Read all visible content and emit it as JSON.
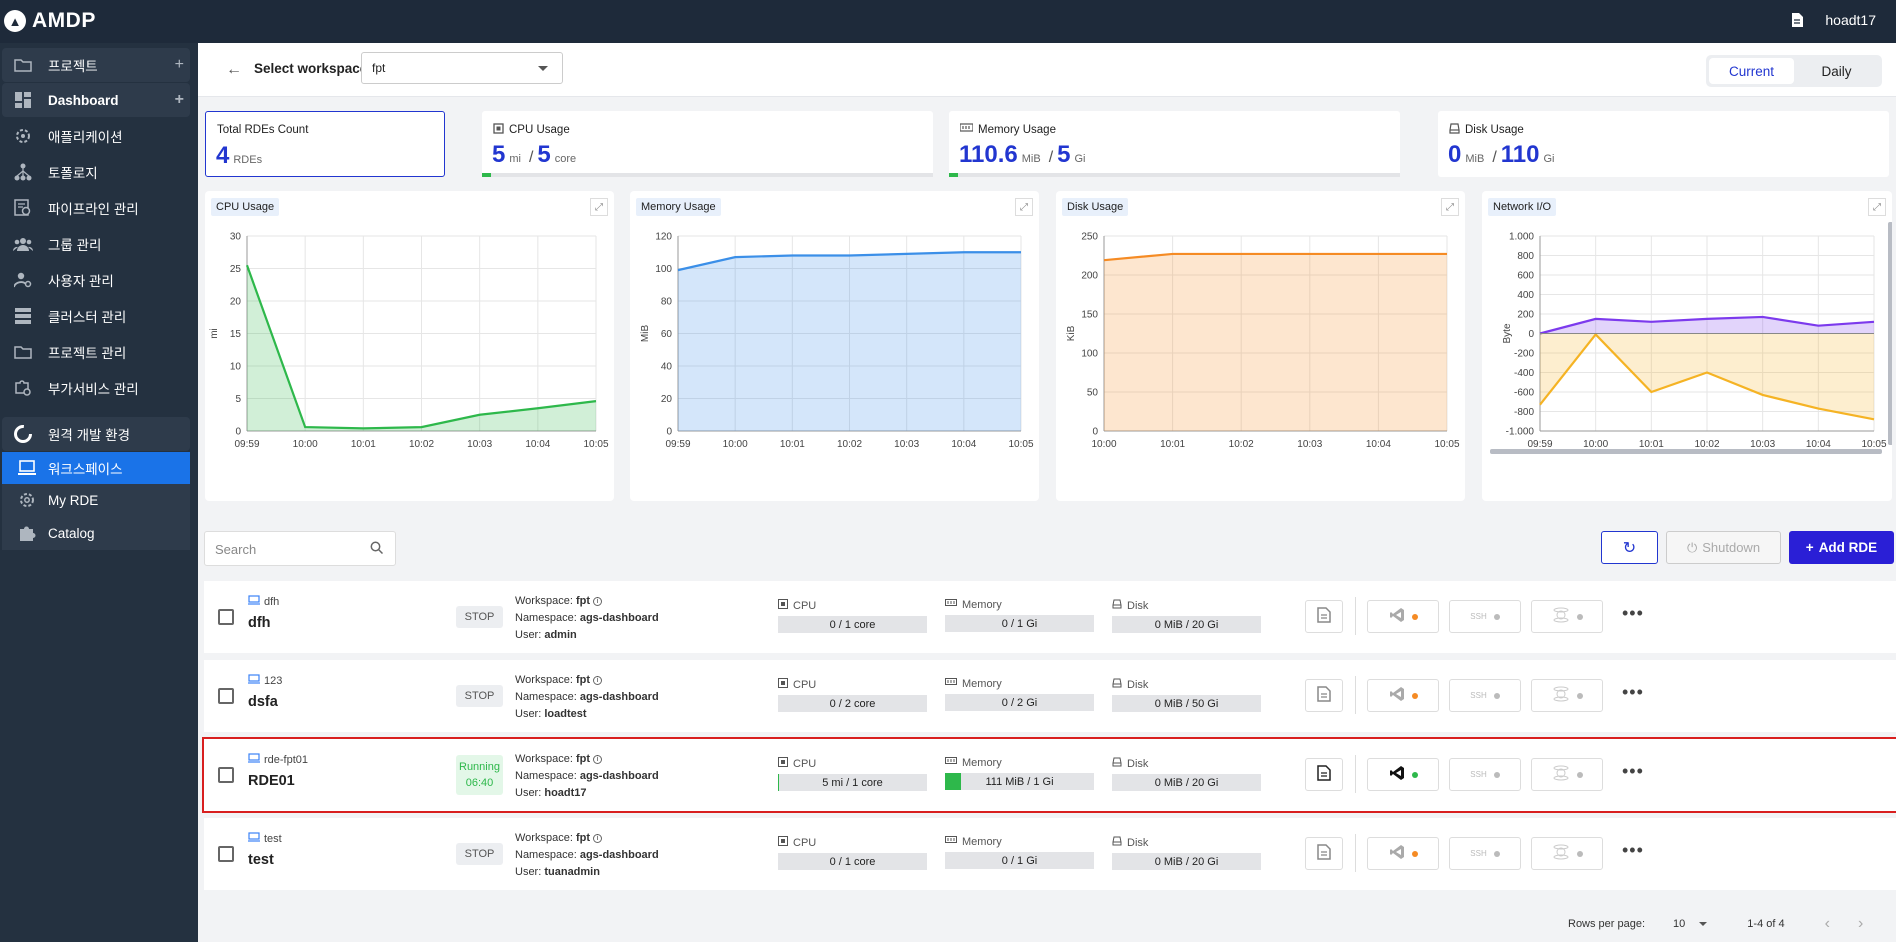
{
  "app": {
    "title": "AMDP",
    "user": "hoadt17"
  },
  "sidebar": {
    "items": [
      {
        "label": "프로젝트"
      },
      {
        "label": "Dashboard"
      },
      {
        "label": "애플리케이션"
      },
      {
        "label": "토폴로지"
      },
      {
        "label": "파이프라인 관리"
      },
      {
        "label": "그룹 관리"
      },
      {
        "label": "사용자 관리"
      },
      {
        "label": "클러스터 관리"
      },
      {
        "label": "프로젝트 관리"
      },
      {
        "label": "부가서비스 관리"
      },
      {
        "label": "원격 개발 환경"
      }
    ],
    "subitems": [
      {
        "label": "워크스페이스"
      },
      {
        "label": "My RDE"
      },
      {
        "label": "Catalog"
      }
    ]
  },
  "workspace": {
    "label": "Select workspace",
    "value": "fpt"
  },
  "view_toggle": {
    "current": "Current",
    "daily": "Daily"
  },
  "stats": {
    "rdes": {
      "title": "Total RDEs Count",
      "value": "4",
      "unit": "RDEs"
    },
    "cpu": {
      "title": "CPU Usage",
      "used": "5",
      "used_unit": "mi",
      "total": "5",
      "total_unit": "core",
      "fill_fraction": 0.001
    },
    "memory": {
      "title": "Memory Usage",
      "used": "110.6",
      "used_unit": "MiB",
      "total": "5",
      "total_unit": "Gi",
      "fill_fraction": 0.02
    },
    "disk": {
      "title": "Disk Usage",
      "used": "0",
      "used_unit": "MiB",
      "total": "110",
      "total_unit": "Gi",
      "fill_fraction": 0
    }
  },
  "charts": {
    "cpu_title": "CPU Usage",
    "memory_title": "Memory Usage",
    "disk_title": "Disk Usage",
    "network_title": "Network I/O"
  },
  "chart_data": [
    {
      "type": "area",
      "title": "CPU Usage",
      "ylabel": "mi",
      "categories": [
        "09:59",
        "10:00",
        "10:01",
        "10:02",
        "10:03",
        "10:04",
        "10:05"
      ],
      "values": [
        25.5,
        0.6,
        0.4,
        0.6,
        2.5,
        3.5,
        4.6
      ],
      "ylim": [
        0,
        30
      ],
      "yticks": [
        0,
        5,
        10,
        15,
        20,
        25,
        30
      ],
      "color": "#2eb84b"
    },
    {
      "type": "area",
      "title": "Memory Usage",
      "ylabel": "MiB",
      "categories": [
        "09:59",
        "10:00",
        "10:01",
        "10:02",
        "10:03",
        "10:04",
        "10:05"
      ],
      "values": [
        99,
        107,
        108,
        108,
        109,
        110,
        110
      ],
      "ylim": [
        0,
        120
      ],
      "yticks": [
        0,
        20,
        40,
        60,
        80,
        100,
        120
      ],
      "color": "#3b8fe8"
    },
    {
      "type": "area",
      "title": "Disk Usage",
      "ylabel": "KiB",
      "categories": [
        "10:00",
        "10:01",
        "10:02",
        "10:03",
        "10:04",
        "10:05"
      ],
      "values": [
        219,
        227,
        227,
        227,
        227,
        227
      ],
      "ylim": [
        0,
        250
      ],
      "yticks": [
        0,
        50,
        100,
        150,
        200,
        250
      ],
      "color": "#f58b24"
    },
    {
      "type": "area",
      "title": "Network I/O",
      "ylabel": "Byte",
      "categories": [
        "09:59",
        "10:00",
        "10:01",
        "10:02",
        "10:03",
        "10:04",
        "10:05"
      ],
      "ylim": [
        -1000,
        1000
      ],
      "yticks": [
        -1000,
        -800,
        -600,
        -400,
        -200,
        0,
        200,
        400,
        600,
        800,
        1000
      ],
      "ytick_labels": [
        "-1.000",
        "-800",
        "-600",
        "-400",
        "-200",
        "0",
        "200",
        "400",
        "600",
        "800",
        "1.000"
      ],
      "series": [
        {
          "values": [
            0,
            150,
            120,
            150,
            170,
            80,
            120
          ],
          "color": "#7c3aed"
        },
        {
          "values": [
            -730,
            -10,
            -600,
            -400,
            -630,
            -770,
            -880
          ],
          "color": "#f5b324"
        }
      ]
    }
  ],
  "controls": {
    "search_placeholder": "Search",
    "shutdown": "Shutdown",
    "add": "Add RDE"
  },
  "labels": {
    "workspace": "Workspace:",
    "namespace": "Namespace:",
    "user": "User:",
    "cpu": "CPU",
    "memory": "Memory",
    "disk": "Disk",
    "ssh": "SSH"
  },
  "rdes": [
    {
      "id": "dfh",
      "name": "dfh",
      "status": "STOP",
      "status2": "",
      "workspace": "fpt",
      "namespace": "ags-dashboard",
      "user": "admin",
      "cpu": "0 / 1 core",
      "cpu_fill": 0,
      "memory": "0 / 1 Gi",
      "memory_fill": 0,
      "disk": "0 MiB / 20 Gi"
    },
    {
      "id": "123",
      "name": "dsfa",
      "status": "STOP",
      "status2": "",
      "workspace": "fpt",
      "namespace": "ags-dashboard",
      "user": "loadtest",
      "cpu": "0 / 2 core",
      "cpu_fill": 0,
      "memory": "0 / 2 Gi",
      "memory_fill": 0,
      "disk": "0 MiB / 50 Gi"
    },
    {
      "id": "rde-fpt01",
      "name": "RDE01",
      "status": "Running",
      "status2": "06:40",
      "workspace": "fpt",
      "namespace": "ags-dashboard",
      "user": "hoadt17",
      "cpu": "5 mi / 1 core",
      "cpu_fill": 0.01,
      "memory": "111 MiB / 1 Gi",
      "memory_fill": 0.11,
      "disk": "0 MiB / 20 Gi"
    },
    {
      "id": "test",
      "name": "test",
      "status": "STOP",
      "status2": "",
      "workspace": "fpt",
      "namespace": "ags-dashboard",
      "user": "tuanadmin",
      "cpu": "0 / 1 core",
      "cpu_fill": 0,
      "memory": "0 / 1 Gi",
      "memory_fill": 0,
      "disk": "0 MiB / 20 Gi"
    }
  ],
  "pagination": {
    "rows_label": "Rows per page:",
    "rows_value": "10",
    "range": "1-4 of 4"
  }
}
